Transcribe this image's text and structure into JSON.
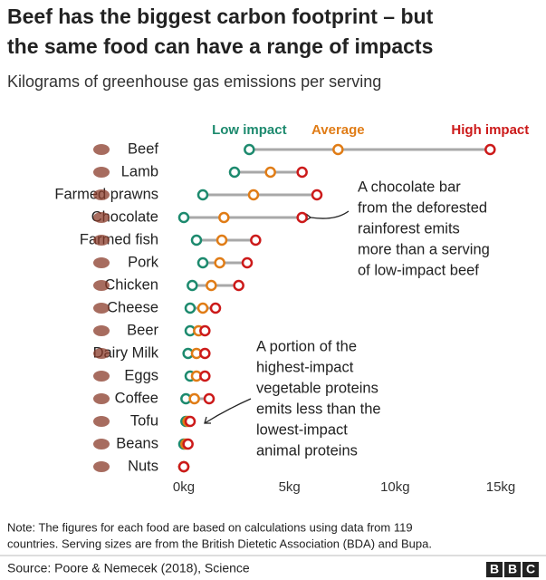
{
  "chart_data": {
    "type": "dot_range",
    "title_lines": [
      "Beef has the biggest carbon footprint – but",
      "the same food can have a range of impacts"
    ],
    "subtitle": "Kilograms of greenhouse gas emissions per serving",
    "categories": [
      "Beef",
      "Lamb",
      "Farmed prawns",
      "Chocolate",
      "Farmed fish",
      "Pork",
      "Chicken",
      "Cheese",
      "Beer",
      "Dairy Milk",
      "Eggs",
      "Coffee",
      "Tofu",
      "Beans",
      "Nuts"
    ],
    "series": [
      {
        "name": "Low impact",
        "color": "#1d8a6e",
        "values": [
          3.1,
          2.4,
          0.9,
          0,
          0.6,
          0.9,
          0.4,
          0.3,
          0.3,
          0.2,
          0.3,
          0.1,
          0.1,
          0,
          0
        ]
      },
      {
        "name": "Average",
        "color": "#e07c16",
        "values": [
          7.3,
          4.1,
          3.3,
          1.9,
          1.8,
          1.7,
          1.3,
          0.9,
          0.7,
          0.6,
          0.6,
          0.5,
          0.2,
          0.1,
          0
        ]
      },
      {
        "name": "High impact",
        "color": "#cc1a1a",
        "values": [
          14.5,
          5.6,
          6.3,
          5.6,
          3.4,
          3.0,
          2.6,
          1.5,
          1.0,
          1.0,
          1.0,
          1.2,
          0.3,
          0.2,
          0
        ]
      }
    ],
    "line_color": "#a8a8a8",
    "xlim": [
      0,
      15
    ],
    "xticks": [
      {
        "value": 0,
        "label": "0kg"
      },
      {
        "value": 5,
        "label": "5kg"
      },
      {
        "value": 10,
        "label": "10kg"
      },
      {
        "value": 15,
        "label": "15kg"
      }
    ],
    "annotations": [
      {
        "lines": [
          "A chocolate bar",
          "from the deforested",
          "rainforest emits",
          "more than a serving",
          "of low-impact beef"
        ]
      },
      {
        "lines": [
          "A portion of the",
          "highest-impact",
          "vegetable proteins",
          "emits less than the",
          "lowest-impact",
          "animal proteins"
        ]
      }
    ],
    "note_lines": [
      "Note: The figures for each food are based on calculations using data from 119",
      "countries. Serving sizes are from the British Dietetic Association (BDA) and Bupa."
    ],
    "source": "Source: Poore & Nemecek (2018), Science",
    "logo": [
      "B",
      "B",
      "C"
    ]
  }
}
